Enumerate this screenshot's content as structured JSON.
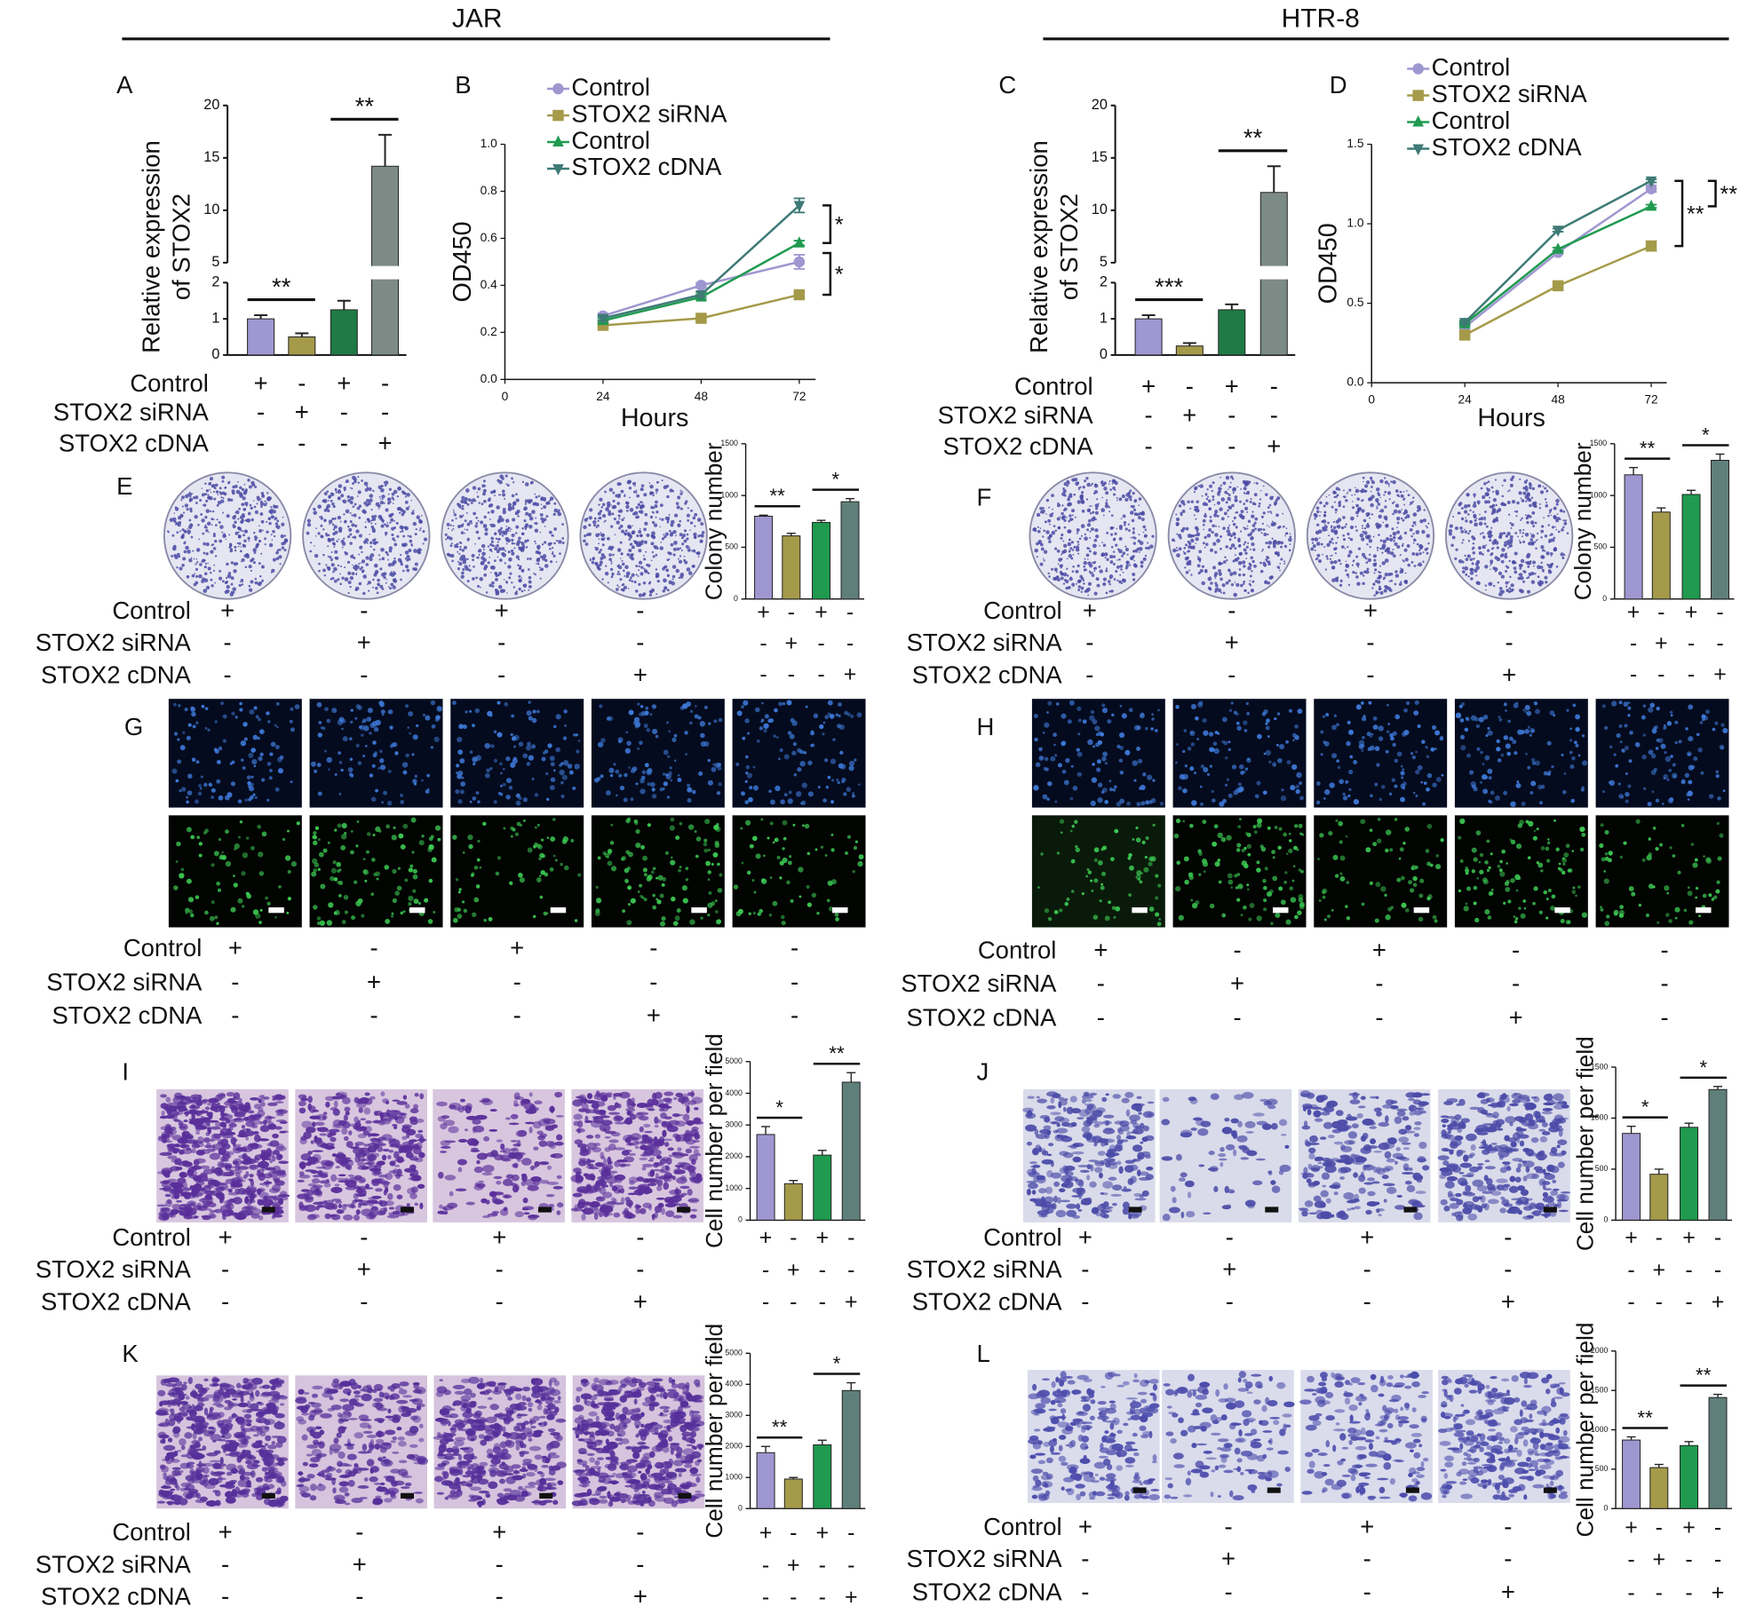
{
  "headers": [
    "JAR",
    "HTR-8"
  ],
  "panels": [
    "A",
    "B",
    "C",
    "D",
    "E",
    "F",
    "G",
    "H",
    "I",
    "J",
    "K",
    "L"
  ],
  "treatments": [
    "Control",
    "STOX2 siRNA",
    "STOX2 cDNA"
  ],
  "design": [
    [
      "+",
      "-",
      "+",
      "-"
    ],
    [
      "-",
      "+",
      "-",
      "-"
    ],
    [
      "-",
      "-",
      "-",
      "+"
    ]
  ],
  "design_migration": [
    [
      "+",
      "-",
      "+",
      "-",
      "-"
    ],
    [
      "-",
      "+",
      "-",
      "-",
      "-"
    ],
    [
      "-",
      "-",
      "-",
      "+",
      "-"
    ]
  ],
  "chart_data": [
    {
      "type": "bar",
      "ylabel": [
        "Relative expression",
        "of STOX2"
      ],
      "values": [
        1.0,
        0.5,
        1.25,
        14.2
      ],
      "errors": [
        0.1,
        0.1,
        0.25,
        3.0
      ],
      "colors": [
        "#9f97d0",
        "#a59a4a",
        "#1f7a45",
        "#7d8b86"
      ],
      "ylim": [
        0,
        20
      ],
      "yticks": [
        0,
        1,
        2,
        5,
        10,
        15,
        20
      ],
      "axis_break": [
        2,
        5
      ],
      "significance": [
        "**",
        "**"
      ]
    },
    {
      "type": "line",
      "xlabel": "Hours",
      "ylabel": "OD450",
      "x": [
        24,
        48,
        72
      ],
      "xlim": [
        0,
        76
      ],
      "xticks": [
        0,
        24,
        48,
        72
      ],
      "ylim": [
        0,
        1
      ],
      "yticks": [
        {
          "value": 0,
          "label": "0.0"
        },
        0.2,
        0.4,
        0.6,
        0.8,
        {
          "value": 1,
          "label": "1.0"
        }
      ],
      "series": [
        {
          "name": "Control",
          "color": "#9f97d0",
          "marker": "circle",
          "values": [
            0.27,
            0.4,
            0.5
          ],
          "errors": [
            0.01,
            0.01,
            0.03
          ]
        },
        {
          "name": "STOX2 siRNA",
          "color": "#a59a4a",
          "marker": "square",
          "values": [
            0.23,
            0.26,
            0.36
          ],
          "errors": [
            0.01,
            0.01,
            0.01
          ]
        },
        {
          "name": "Control",
          "color": "#1f9a4f",
          "marker": "triangle-up",
          "values": [
            0.25,
            0.35,
            0.58
          ],
          "errors": [
            0.01,
            0.01,
            0.01
          ]
        },
        {
          "name": "STOX2 cDNA",
          "color": "#3e7a76",
          "marker": "triangle-down",
          "values": [
            0.26,
            0.36,
            0.74
          ],
          "errors": [
            0.01,
            0.01,
            0.03
          ]
        }
      ],
      "significance": [
        "*",
        "*"
      ]
    },
    {
      "type": "bar",
      "ylabel": [
        "Relative expression",
        "of STOX2"
      ],
      "values": [
        1.0,
        0.25,
        1.25,
        11.7
      ],
      "errors": [
        0.1,
        0.08,
        0.15,
        2.5
      ],
      "colors": [
        "#9f97d0",
        "#a59a4a",
        "#1f7a45",
        "#7d8b86"
      ],
      "ylim": [
        0,
        20
      ],
      "yticks": [
        0,
        1,
        2,
        5,
        10,
        15,
        20
      ],
      "axis_break": [
        2,
        5
      ],
      "significance": [
        "***",
        "**"
      ]
    },
    {
      "type": "line",
      "xlabel": "Hours",
      "ylabel": "OD450",
      "x": [
        24,
        48,
        72
      ],
      "xlim": [
        0,
        76
      ],
      "xticks": [
        0,
        24,
        48,
        72
      ],
      "ylim": [
        0,
        1.5
      ],
      "yticks": [
        {
          "value": 0,
          "label": "0.0"
        },
        0.5,
        {
          "value": 1,
          "label": "1.0"
        },
        1.5
      ],
      "series": [
        {
          "name": "Control",
          "color": "#9f97d0",
          "marker": "circle",
          "values": [
            0.35,
            0.82,
            1.22
          ],
          "errors": [
            0.01,
            0.01,
            0.02
          ]
        },
        {
          "name": "STOX2 siRNA",
          "color": "#a59a4a",
          "marker": "square",
          "values": [
            0.3,
            0.61,
            0.86
          ],
          "errors": [
            0.01,
            0.01,
            0.03
          ]
        },
        {
          "name": "Control",
          "color": "#1f9a4f",
          "marker": "triangle-up",
          "values": [
            0.37,
            0.84,
            1.11
          ],
          "errors": [
            0.01,
            0.01,
            0.01
          ]
        },
        {
          "name": "STOX2 cDNA",
          "color": "#3e7a76",
          "marker": "triangle-down",
          "values": [
            0.38,
            0.96,
            1.27
          ],
          "errors": [
            0.01,
            0.01,
            0.01
          ]
        }
      ],
      "significance": [
        "**",
        "**"
      ]
    },
    {
      "type": "bar",
      "ylabel": "Colony number",
      "values": [
        800,
        610,
        740,
        940
      ],
      "errors": [
        10,
        25,
        20,
        30
      ],
      "colors": [
        "#9f97d0",
        "#a59a4a",
        "#1f9a4f",
        "#5f7f7a"
      ],
      "ylim": [
        0,
        1500
      ],
      "yticks": [
        0,
        500,
        1000,
        1500
      ],
      "significance": [
        "**",
        "*"
      ]
    },
    {
      "type": "bar",
      "ylabel": "Colony number",
      "values": [
        1200,
        840,
        1010,
        1340
      ],
      "errors": [
        70,
        40,
        40,
        60
      ],
      "colors": [
        "#9f97d0",
        "#a59a4a",
        "#1f9a4f",
        "#5f7f7a"
      ],
      "ylim": [
        0,
        1500
      ],
      "yticks": [
        0,
        500,
        1000,
        1500
      ],
      "significance": [
        "**",
        "*"
      ]
    },
    {
      "type": "bar",
      "ylabel": "Cell number per field",
      "values": [
        2700,
        1150,
        2050,
        4350
      ],
      "errors": [
        250,
        100,
        150,
        300
      ],
      "colors": [
        "#9f97d0",
        "#a59a4a",
        "#1f9a4f",
        "#5f7f7a"
      ],
      "ylim": [
        0,
        5000
      ],
      "yticks": [
        0,
        1000,
        2000,
        3000,
        4000,
        5000
      ],
      "significance": [
        "*",
        "**"
      ]
    },
    {
      "type": "bar",
      "ylabel": "Cell number per field",
      "values": [
        850,
        450,
        910,
        1280
      ],
      "errors": [
        70,
        50,
        40,
        30
      ],
      "colors": [
        "#9f97d0",
        "#a59a4a",
        "#1f9a4f",
        "#5f7f7a"
      ],
      "ylim": [
        0,
        1500
      ],
      "yticks": [
        0,
        500,
        1000,
        1500
      ],
      "significance": [
        "*",
        "*"
      ]
    },
    {
      "type": "bar",
      "ylabel": "Cell number per field",
      "values": [
        1800,
        950,
        2050,
        3800
      ],
      "errors": [
        200,
        50,
        150,
        250
      ],
      "colors": [
        "#9f97d0",
        "#a59a4a",
        "#1f9a4f",
        "#5f7f7a"
      ],
      "ylim": [
        0,
        5000
      ],
      "yticks": [
        0,
        1000,
        2000,
        3000,
        4000,
        5000
      ],
      "significance": [
        "**",
        "*"
      ]
    },
    {
      "type": "bar",
      "ylabel": "Cell number per field",
      "values": [
        870,
        520,
        800,
        1410
      ],
      "errors": [
        40,
        40,
        50,
        40
      ],
      "colors": [
        "#9f97d0",
        "#a59a4a",
        "#1f9a4f",
        "#5f7f7a"
      ],
      "ylim": [
        0,
        2000
      ],
      "yticks": [
        0,
        500,
        1000,
        1500,
        2000
      ],
      "significance": [
        "**",
        "**"
      ]
    }
  ]
}
